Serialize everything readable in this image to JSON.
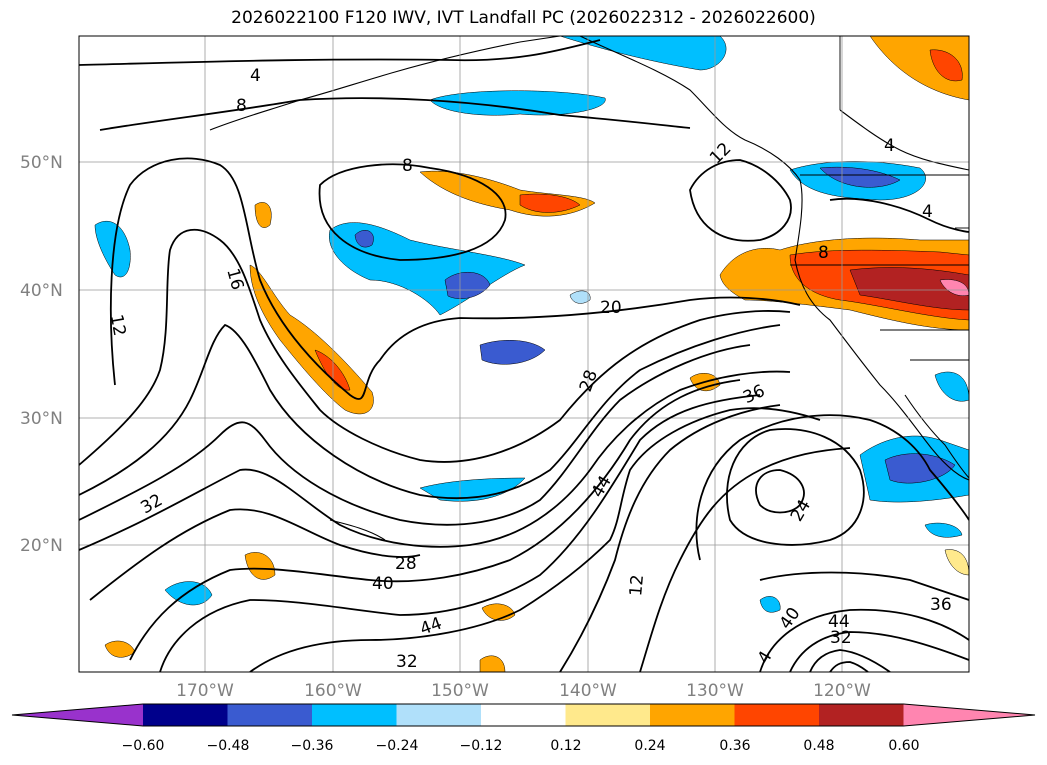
{
  "title": "2026022100 F120 IWV, IVT Landfall PC (2026022312 - 2026022600)",
  "map": {
    "lat_labels": [
      "50°N",
      "40°N",
      "30°N",
      "20°N"
    ],
    "lon_labels": [
      "170°W",
      "160°W",
      "150°W",
      "140°W",
      "130°W",
      "120°W"
    ],
    "contour_labels": [
      "4",
      "8",
      "8",
      "12",
      "16",
      "12",
      "20",
      "28",
      "36",
      "44",
      "32",
      "28",
      "40",
      "44",
      "32",
      "12",
      "24",
      "36",
      "40",
      "44",
      "32",
      "4",
      "4",
      "4",
      "8"
    ]
  },
  "colorbar": {
    "ticks": [
      "−0.60",
      "−0.48",
      "−0.36",
      "−0.24",
      "−0.12",
      "0.12",
      "0.24",
      "0.36",
      "0.48",
      "0.60"
    ],
    "colors": [
      "#9932cc",
      "#00008b",
      "#3a5bd0",
      "#00bfff",
      "#b0e0fa",
      "#ffffff",
      "#ffe98c",
      "#ffa500",
      "#ff4500",
      "#b22222",
      "#ff85b0"
    ]
  }
}
